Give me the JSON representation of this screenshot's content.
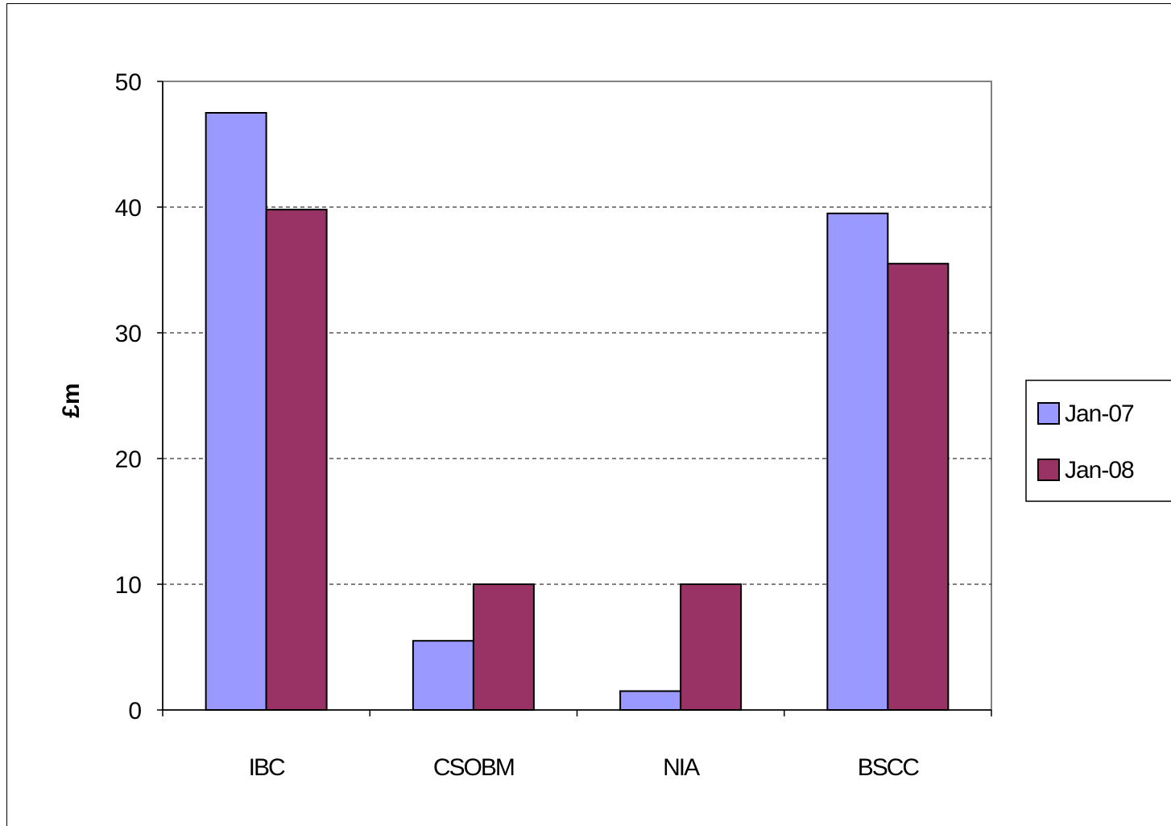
{
  "chart_data": {
    "type": "bar",
    "categories": [
      "IBC",
      "CSOBM",
      "NIA",
      "BSCC"
    ],
    "series": [
      {
        "name": "Jan-07",
        "values": [
          47.5,
          5.5,
          1.5,
          39.5
        ],
        "color": "#9999ff"
      },
      {
        "name": "Jan-08",
        "values": [
          39.8,
          10.0,
          10.0,
          35.5
        ],
        "color": "#993366"
      }
    ],
    "ylabel": "£m",
    "xlabel": "",
    "ylim": [
      0,
      50
    ],
    "yticks": [
      0,
      10,
      20,
      30,
      40,
      50
    ],
    "grid": "horizontal dashed",
    "legend_position": "right"
  }
}
